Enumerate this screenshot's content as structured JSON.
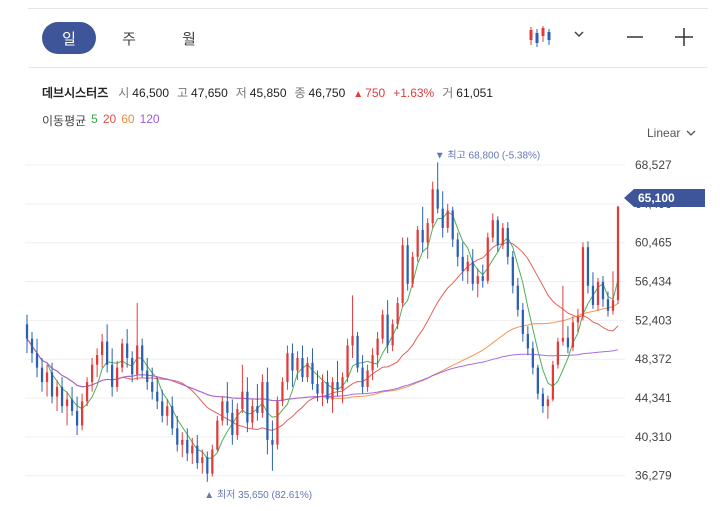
{
  "toolbar": {
    "tabs": [
      {
        "label": "일",
        "active": true
      },
      {
        "label": "주",
        "active": false
      },
      {
        "label": "월",
        "active": false
      }
    ],
    "icons": {
      "chart_type": "candlestick-icon",
      "dropdown": "chevron-down-icon",
      "zoom_out": "minus-icon",
      "zoom_in": "plus-icon"
    }
  },
  "ohlc": {
    "name": "데브시스터즈",
    "open_label": "시",
    "open": "46,500",
    "high_label": "고",
    "high": "47,650",
    "low_label": "저",
    "low": "45,850",
    "close_label": "종",
    "close": "46,750",
    "change": "750",
    "change_pct": "+1.63%",
    "volume_label": "거",
    "volume": "61,051"
  },
  "moving_average": {
    "label": "이동평균",
    "periods": [
      {
        "label": "5",
        "color": "#3aa845"
      },
      {
        "label": "20",
        "color": "#e0504a"
      },
      {
        "label": "60",
        "color": "#f08c3c"
      },
      {
        "label": "120",
        "color": "#9b5de5"
      }
    ]
  },
  "scale_mode": "Linear",
  "colors": {
    "up": "#e03b3b",
    "down": "#2b5fb3",
    "accent": "#3e5599",
    "annotation": "#6577b3"
  },
  "chart_data": {
    "type": "candlestick",
    "y_ticks": [
      "68,527",
      "64,496",
      "60,465",
      "56,434",
      "52,403",
      "48,372",
      "44,341",
      "40,310",
      "36,279"
    ],
    "ylim": [
      34800,
      70500
    ],
    "current_price": "65,100",
    "current_price_value": 65100,
    "max_annotation": {
      "text": "최고 68,800 (-5.38%)",
      "value": 68800,
      "index": 82
    },
    "min_annotation": {
      "text": "최저 35,650 (82.61%)",
      "value": 35650,
      "index": 36
    },
    "candles": [
      [
        52000,
        53000,
        49000,
        50500
      ],
      [
        50500,
        51200,
        48000,
        49000
      ],
      [
        49000,
        50500,
        46500,
        47500
      ],
      [
        47500,
        48500,
        45000,
        46000
      ],
      [
        46000,
        47800,
        44500,
        47000
      ],
      [
        47000,
        48000,
        43800,
        44500
      ],
      [
        44500,
        46200,
        43000,
        45500
      ],
      [
        45500,
        46500,
        42800,
        43500
      ],
      [
        43500,
        45000,
        41500,
        44200
      ],
      [
        44200,
        45500,
        42500,
        43000
      ],
      [
        43000,
        44500,
        40500,
        41500
      ],
      [
        41500,
        44800,
        41000,
        44000
      ],
      [
        44000,
        46500,
        43500,
        46000
      ],
      [
        46000,
        48500,
        45000,
        47800
      ],
      [
        47800,
        49500,
        46500,
        48800
      ],
      [
        48800,
        51000,
        47500,
        50200
      ],
      [
        50200,
        52000,
        47000,
        47800
      ],
      [
        47800,
        49500,
        44500,
        45500
      ],
      [
        45500,
        48200,
        45000,
        47500
      ],
      [
        47500,
        50500,
        47000,
        50000
      ],
      [
        50000,
        51500,
        47500,
        48500
      ],
      [
        48500,
        49200,
        46000,
        46800
      ],
      [
        46800,
        54200,
        46200,
        49800
      ],
      [
        49800,
        50500,
        46500,
        47200
      ],
      [
        47200,
        48500,
        45200,
        46000
      ],
      [
        46000,
        47500,
        44200,
        45000
      ],
      [
        45000,
        46500,
        43200,
        44000
      ],
      [
        44000,
        45200,
        41800,
        42500
      ],
      [
        42500,
        44200,
        41500,
        43500
      ],
      [
        43500,
        44500,
        40500,
        41200
      ],
      [
        41200,
        42500,
        38800,
        39500
      ],
      [
        39500,
        40800,
        38200,
        40000
      ],
      [
        40000,
        41200,
        37800,
        38600
      ],
      [
        38600,
        40200,
        37500,
        39400
      ],
      [
        39400,
        40500,
        37000,
        37600
      ],
      [
        37600,
        39000,
        36500,
        38200
      ],
      [
        38200,
        38800,
        35650,
        36500
      ],
      [
        36500,
        39500,
        36200,
        39000
      ],
      [
        39000,
        42500,
        38800,
        42000
      ],
      [
        42000,
        44500,
        41500,
        44000
      ],
      [
        44000,
        46000,
        41500,
        42800
      ],
      [
        42800,
        44200,
        39500,
        40500
      ],
      [
        40500,
        43800,
        40000,
        43200
      ],
      [
        43200,
        47800,
        42800,
        45000
      ],
      [
        45000,
        46500,
        40800,
        41800
      ],
      [
        41800,
        44200,
        41200,
        43500
      ],
      [
        43500,
        45800,
        42000,
        42800
      ],
      [
        42800,
        46800,
        42300,
        46000
      ],
      [
        46000,
        47500,
        38500,
        40000
      ],
      [
        40000,
        42000,
        36800,
        39500
      ],
      [
        39500,
        44500,
        39000,
        44000
      ],
      [
        44000,
        46500,
        43500,
        46000
      ],
      [
        46000,
        49800,
        45200,
        49000
      ],
      [
        49000,
        50000,
        45500,
        47200
      ],
      [
        47200,
        49200,
        46200,
        48500
      ],
      [
        48500,
        49800,
        46000,
        46500
      ],
      [
        46500,
        48600,
        46000,
        48000
      ],
      [
        48000,
        49500,
        45200,
        45800
      ],
      [
        45800,
        47200,
        44000,
        44800
      ],
      [
        44800,
        46800,
        43500,
        46000
      ],
      [
        46000,
        47200,
        43800,
        44200
      ],
      [
        44200,
        46500,
        42800,
        46000
      ],
      [
        46000,
        48200,
        44500,
        45200
      ],
      [
        45200,
        47000,
        43800,
        46500
      ],
      [
        46500,
        50500,
        46000,
        49800
      ],
      [
        49800,
        55000,
        48500,
        50800
      ],
      [
        50800,
        51200,
        47000,
        47500
      ],
      [
        47500,
        48800,
        44800,
        45500
      ],
      [
        45500,
        47800,
        45000,
        47200
      ],
      [
        47200,
        49500,
        46200,
        48800
      ],
      [
        48800,
        51200,
        47500,
        50500
      ],
      [
        50500,
        53500,
        50000,
        53000
      ],
      [
        53000,
        54500,
        49000,
        49800
      ],
      [
        49800,
        52500,
        49200,
        52000
      ],
      [
        52000,
        54800,
        51500,
        54200
      ],
      [
        54200,
        61000,
        53800,
        60200
      ],
      [
        60200,
        61000,
        55500,
        56200
      ],
      [
        56200,
        59500,
        55800,
        59000
      ],
      [
        59000,
        62200,
        58500,
        61800
      ],
      [
        61800,
        64200,
        59500,
        60500
      ],
      [
        60500,
        63000,
        58800,
        62500
      ],
      [
        62500,
        66800,
        62000,
        66000
      ],
      [
        66000,
        68800,
        63500,
        64000
      ],
      [
        64000,
        65800,
        61000,
        62000
      ],
      [
        62000,
        64500,
        61500,
        63800
      ],
      [
        63800,
        64200,
        60000,
        60800
      ],
      [
        60800,
        61500,
        58000,
        59000
      ],
      [
        59000,
        60500,
        56500,
        57500
      ],
      [
        57500,
        59200,
        56200,
        58500
      ],
      [
        58500,
        59800,
        55500,
        56200
      ],
      [
        56200,
        57800,
        54800,
        57000
      ],
      [
        57000,
        58200,
        55800,
        56500
      ],
      [
        56500,
        61500,
        56200,
        61000
      ],
      [
        61000,
        63500,
        60500,
        62800
      ],
      [
        62800,
        63200,
        59500,
        60200
      ],
      [
        60200,
        62500,
        59800,
        62000
      ],
      [
        62000,
        62600,
        58200,
        59000
      ],
      [
        59000,
        59600,
        55200,
        56000
      ],
      [
        56000,
        56800,
        52800,
        53500
      ],
      [
        53500,
        54200,
        50200,
        51000
      ],
      [
        51000,
        51800,
        48800,
        49500
      ],
      [
        49500,
        50200,
        46800,
        47500
      ],
      [
        47500,
        47800,
        44200,
        44800
      ],
      [
        44800,
        45400,
        42800,
        43500
      ],
      [
        43500,
        44600,
        42200,
        44200
      ],
      [
        44200,
        48200,
        44000,
        47800
      ],
      [
        47800,
        50600,
        47400,
        50200
      ],
      [
        50200,
        56000,
        49800,
        50600
      ],
      [
        50600,
        51800,
        49000,
        49600
      ],
      [
        49600,
        52800,
        49200,
        52200
      ],
      [
        52200,
        53600,
        51200,
        52800
      ],
      [
        52800,
        60500,
        52400,
        60000
      ],
      [
        60000,
        60600,
        55200,
        56000
      ],
      [
        56000,
        57400,
        53600,
        54000
      ],
      [
        54000,
        56800,
        53400,
        56400
      ],
      [
        56400,
        57000,
        53800,
        54600
      ],
      [
        54600,
        55400,
        52800,
        53400
      ],
      [
        53400,
        57500,
        53000,
        54500
      ],
      [
        54500,
        64300,
        54100,
        64200
      ]
    ]
  }
}
